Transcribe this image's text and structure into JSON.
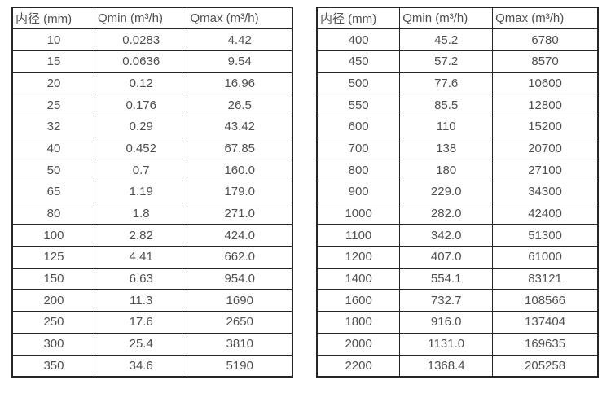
{
  "colors": {
    "text": "#4f4f4f",
    "border": "#262626",
    "background": "#ffffff"
  },
  "chart_data": [
    {
      "type": "table",
      "title": "",
      "headers": [
        "内径 (mm)",
        "Qmin (m³/h)",
        "Qmax (m³/h)"
      ],
      "rows": [
        [
          "10",
          "0.0283",
          "4.42"
        ],
        [
          "15",
          "0.0636",
          "9.54"
        ],
        [
          "20",
          "0.12",
          "16.96"
        ],
        [
          "25",
          "0.176",
          "26.5"
        ],
        [
          "32",
          "0.29",
          "43.42"
        ],
        [
          "40",
          "0.452",
          "67.85"
        ],
        [
          "50",
          "0.7",
          "160.0"
        ],
        [
          "65",
          "1.19",
          "179.0"
        ],
        [
          "80",
          "1.8",
          "271.0"
        ],
        [
          "100",
          "2.82",
          "424.0"
        ],
        [
          "125",
          "4.41",
          "662.0"
        ],
        [
          "150",
          "6.63",
          "954.0"
        ],
        [
          "200",
          "11.3",
          "1690"
        ],
        [
          "250",
          "17.6",
          "2650"
        ],
        [
          "300",
          "25.4",
          "3810"
        ],
        [
          "350",
          "34.6",
          "5190"
        ]
      ]
    },
    {
      "type": "table",
      "title": "",
      "headers": [
        "内径 (mm)",
        "Qmin (m³/h)",
        "Qmax (m³/h)"
      ],
      "rows": [
        [
          "400",
          "45.2",
          "6780"
        ],
        [
          "450",
          "57.2",
          "8570"
        ],
        [
          "500",
          "77.6",
          "10600"
        ],
        [
          "550",
          "85.5",
          "12800"
        ],
        [
          "600",
          "110",
          "15200"
        ],
        [
          "700",
          "138",
          "20700"
        ],
        [
          "800",
          "180",
          "27100"
        ],
        [
          "900",
          "229.0",
          "34300"
        ],
        [
          "1000",
          "282.0",
          "42400"
        ],
        [
          "1100",
          "342.0",
          "51300"
        ],
        [
          "1200",
          "407.0",
          "61000"
        ],
        [
          "1400",
          "554.1",
          "83121"
        ],
        [
          "1600",
          "732.7",
          "108566"
        ],
        [
          "1800",
          "916.0",
          "137404"
        ],
        [
          "2000",
          "1131.0",
          "169635"
        ],
        [
          "2200",
          "1368.4",
          "205258"
        ]
      ]
    }
  ]
}
